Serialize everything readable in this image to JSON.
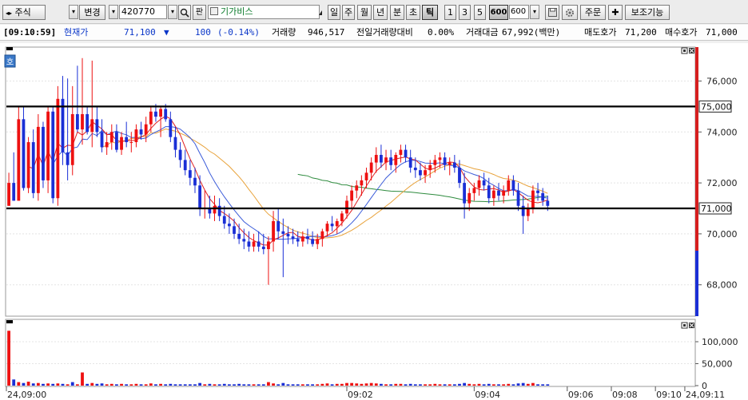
{
  "toolbar": {
    "market_select": "주식",
    "change_label": "변경",
    "code": "420770",
    "search_icon": "search-icon",
    "pan_label": "판",
    "stock_name": "기가비스",
    "period_day": "일",
    "period_week": "주",
    "period_month": "월",
    "period_year": "년",
    "period_min": "분",
    "period_sec": "초",
    "period_tick": "틱",
    "tick_1": "1",
    "tick_3": "3",
    "tick_5": "5",
    "tick_600": "600",
    "tick_input": "600",
    "order_label": "주문",
    "aux_label": "보조기능"
  },
  "infobar": {
    "time": "[09:10:59]",
    "price_label": "현재가",
    "price": "71,100",
    "change_arrow": "▼",
    "change": "100",
    "change_pct": "(-0.14%)",
    "volume_label": "거래량",
    "volume": "946,517",
    "prev_ratio_label": "전일거래량대비",
    "prev_ratio": "0.00%",
    "amount_label": "거래대금",
    "amount": "67,992(백만)",
    "ask_label": "매도호가",
    "ask": "71,200",
    "bid_label": "매수호가",
    "bid": "71,000"
  },
  "chart_badge": "호",
  "colors": {
    "up": "#ee1111",
    "down": "#1a2fd6",
    "ma5": "#e02020",
    "ma10": "#3a5bd9",
    "ma20": "#e8a23a",
    "ma60": "#2e8b3e",
    "hline": "#000000",
    "scale_up": "#d61f1f",
    "scale_down": "#1a2fd6"
  },
  "chart_data": {
    "type": "candlestick",
    "instrument": "420770 기가비스",
    "interval": "600틱",
    "y_range": [
      66800,
      77300
    ],
    "y_ticks": [
      {
        "value": 76000,
        "label": "76,000"
      },
      {
        "value": 74000,
        "label": "74,000"
      },
      {
        "value": 72000,
        "label": "72,000"
      },
      {
        "value": 70000,
        "label": "70,000"
      },
      {
        "value": 68000,
        "label": "68,000"
      }
    ],
    "horizontal_lines": [
      {
        "value": 75000,
        "label": "75,000"
      },
      {
        "value": 71000,
        "label": "71,000"
      }
    ],
    "x_ticks": [
      {
        "index": 0,
        "label": "24,09:00"
      },
      {
        "index": 69,
        "label": "09:02"
      },
      {
        "index": 95,
        "label": "09:04"
      },
      {
        "index": 114,
        "label": "09:06"
      },
      {
        "index": 123,
        "label": "09:08"
      },
      {
        "index": 132,
        "label": "09:10"
      },
      {
        "index": 138,
        "label": "24,09:11"
      }
    ],
    "volume_ticks": [
      {
        "value": 100000,
        "label": "100,000"
      },
      {
        "value": 50000,
        "label": "50,000"
      },
      {
        "value": 0,
        "label": "0"
      }
    ],
    "volume_range": [
      0,
      140000
    ],
    "candles": [
      [
        0,
        71100,
        72400,
        71100,
        72000
      ],
      [
        1,
        72000,
        73200,
        71300,
        71300
      ],
      [
        2,
        71300,
        75000,
        71300,
        74500
      ],
      [
        3,
        74500,
        75000,
        71700,
        71800
      ],
      [
        4,
        71800,
        73800,
        71600,
        73600
      ],
      [
        5,
        73600,
        74100,
        71400,
        71600
      ],
      [
        6,
        71600,
        74700,
        71300,
        74200
      ],
      [
        7,
        74200,
        74400,
        71800,
        72100
      ],
      [
        8,
        72100,
        75000,
        71600,
        74800
      ],
      [
        9,
        74800,
        75000,
        71200,
        71400
      ],
      [
        10,
        71400,
        75800,
        71100,
        75300
      ],
      [
        11,
        75300,
        76200,
        72700,
        73200
      ],
      [
        12,
        73200,
        76100,
        72100,
        72700
      ],
      [
        13,
        72700,
        75800,
        72300,
        74700
      ],
      [
        14,
        74700,
        76600,
        74000,
        74100
      ],
      [
        15,
        74100,
        76900,
        73500,
        74700
      ],
      [
        16,
        74700,
        75000,
        73900,
        74000
      ],
      [
        17,
        74000,
        76800,
        73400,
        74500
      ],
      [
        18,
        74500,
        75000,
        73800,
        74000
      ],
      [
        19,
        74000,
        74500,
        73200,
        73400
      ],
      [
        20,
        73400,
        74000,
        73100,
        73600
      ],
      [
        21,
        73600,
        74300,
        73300,
        74000
      ],
      [
        22,
        74000,
        74300,
        73200,
        73300
      ],
      [
        23,
        73300,
        74000,
        73100,
        73800
      ],
      [
        24,
        73800,
        74400,
        73400,
        73600
      ],
      [
        25,
        73600,
        74000,
        73200,
        73600
      ],
      [
        26,
        73600,
        74300,
        73400,
        74100
      ],
      [
        27,
        74100,
        74400,
        73700,
        73900
      ],
      [
        28,
        73900,
        74600,
        73600,
        74300
      ],
      [
        29,
        74300,
        75000,
        74000,
        74800
      ],
      [
        30,
        74800,
        75100,
        74400,
        74600
      ],
      [
        31,
        74600,
        75000,
        73800,
        74900
      ],
      [
        32,
        74900,
        75100,
        74400,
        74500
      ],
      [
        33,
        74500,
        74800,
        73600,
        73800
      ],
      [
        34,
        73800,
        74200,
        73000,
        73300
      ],
      [
        35,
        73300,
        73600,
        72600,
        72900
      ],
      [
        36,
        72900,
        73300,
        72300,
        72500
      ],
      [
        37,
        72500,
        72900,
        71900,
        72200
      ],
      [
        38,
        72200,
        72600,
        71600,
        71900
      ],
      [
        39,
        71900,
        72300,
        70700,
        71000
      ],
      [
        40,
        71000,
        71700,
        70600,
        71000
      ],
      [
        41,
        71000,
        71500,
        70600,
        70800
      ],
      [
        42,
        70800,
        71500,
        70500,
        71100
      ],
      [
        43,
        71100,
        71400,
        70500,
        70700
      ],
      [
        44,
        70700,
        71100,
        70200,
        70400
      ],
      [
        45,
        70400,
        70800,
        70000,
        70300
      ],
      [
        46,
        70300,
        70600,
        69800,
        70000
      ],
      [
        47,
        70000,
        70400,
        69600,
        69800
      ],
      [
        48,
        69800,
        70200,
        69400,
        69700
      ],
      [
        49,
        69700,
        70100,
        69300,
        69500
      ],
      [
        50,
        69500,
        70000,
        69300,
        69700
      ],
      [
        51,
        69700,
        70100,
        69300,
        69500
      ],
      [
        52,
        69500,
        70000,
        69200,
        69400
      ],
      [
        53,
        69400,
        69900,
        68000,
        69700
      ],
      [
        54,
        69700,
        70900,
        69300,
        70500
      ],
      [
        55,
        70500,
        71000,
        69800,
        70100
      ],
      [
        56,
        70100,
        70600,
        68300,
        70000
      ],
      [
        57,
        70000,
        70300,
        69600,
        69900
      ],
      [
        58,
        69900,
        70200,
        69600,
        69800
      ],
      [
        59,
        69800,
        70100,
        69500,
        69700
      ],
      [
        60,
        69700,
        70100,
        69500,
        69900
      ],
      [
        61,
        69900,
        70200,
        69600,
        69800
      ],
      [
        62,
        69800,
        70100,
        69500,
        69600
      ],
      [
        63,
        69600,
        70000,
        69400,
        69800
      ],
      [
        64,
        69800,
        70200,
        69500,
        70100
      ],
      [
        65,
        70100,
        70500,
        69900,
        70400
      ],
      [
        66,
        70400,
        70700,
        70100,
        70300
      ],
      [
        67,
        70300,
        70600,
        70000,
        70500
      ],
      [
        68,
        70500,
        70900,
        70300,
        70800
      ],
      [
        69,
        70800,
        71500,
        70600,
        71300
      ],
      [
        70,
        71300,
        71900,
        71000,
        71700
      ],
      [
        71,
        71700,
        72100,
        71400,
        71900
      ],
      [
        72,
        71900,
        72300,
        71500,
        72100
      ],
      [
        73,
        72100,
        72600,
        71800,
        72400
      ],
      [
        74,
        72400,
        73000,
        72100,
        72800
      ],
      [
        75,
        72800,
        73400,
        72400,
        73100
      ],
      [
        76,
        73100,
        73500,
        72600,
        72800
      ],
      [
        77,
        72800,
        73300,
        72500,
        73000
      ],
      [
        78,
        73000,
        73300,
        72500,
        72700
      ],
      [
        79,
        72700,
        73200,
        72400,
        73100
      ],
      [
        80,
        73100,
        73500,
        72800,
        73300
      ],
      [
        81,
        73300,
        73500,
        72800,
        73000
      ],
      [
        82,
        73000,
        73300,
        72400,
        72600
      ],
      [
        83,
        72600,
        73000,
        72200,
        72500
      ],
      [
        84,
        72500,
        72800,
        72100,
        72300
      ],
      [
        85,
        72300,
        72700,
        72000,
        72500
      ],
      [
        86,
        72500,
        72900,
        72200,
        72700
      ],
      [
        87,
        72700,
        73100,
        72400,
        72900
      ],
      [
        88,
        72900,
        73200,
        72600,
        73000
      ],
      [
        89,
        73000,
        73200,
        72500,
        72700
      ],
      [
        90,
        72700,
        73000,
        72300,
        72800
      ],
      [
        91,
        72800,
        73100,
        72400,
        72600
      ],
      [
        92,
        72600,
        72900,
        71800,
        72000
      ],
      [
        93,
        72000,
        72400,
        70600,
        71200
      ],
      [
        94,
        71200,
        71800,
        70900,
        71600
      ],
      [
        95,
        71600,
        72000,
        71300,
        71800
      ],
      [
        96,
        71800,
        72300,
        71500,
        72100
      ],
      [
        97,
        72100,
        72400,
        71700,
        71900
      ],
      [
        98,
        71900,
        72200,
        71200,
        71400
      ],
      [
        99,
        71400,
        71900,
        71100,
        71700
      ],
      [
        100,
        71700,
        72000,
        71300,
        71500
      ],
      [
        101,
        71500,
        71900,
        71200,
        71700
      ],
      [
        102,
        71700,
        72300,
        71500,
        72100
      ],
      [
        103,
        72100,
        72300,
        71500,
        71700
      ],
      [
        104,
        71700,
        72000,
        70900,
        71100
      ],
      [
        105,
        71100,
        71500,
        70000,
        70700
      ],
      [
        106,
        70700,
        71200,
        70500,
        71000
      ],
      [
        107,
        71000,
        71900,
        70800,
        71700
      ],
      [
        108,
        71700,
        72000,
        71300,
        71600
      ],
      [
        109,
        71600,
        71800,
        71100,
        71300
      ],
      [
        110,
        71300,
        71500,
        70900,
        71100
      ]
    ],
    "volume_bars": [
      [
        0,
        125000,
        "up"
      ],
      [
        1,
        14000,
        "down"
      ],
      [
        2,
        8000,
        "up"
      ],
      [
        3,
        6000,
        "down"
      ],
      [
        4,
        9000,
        "up"
      ],
      [
        5,
        5000,
        "down"
      ],
      [
        6,
        6000,
        "up"
      ],
      [
        7,
        4000,
        "down"
      ],
      [
        8,
        5000,
        "up"
      ],
      [
        9,
        4000,
        "down"
      ],
      [
        10,
        5000,
        "up"
      ],
      [
        11,
        4000,
        "down"
      ],
      [
        12,
        3000,
        "up"
      ],
      [
        13,
        8000,
        "down"
      ],
      [
        14,
        3000,
        "up"
      ],
      [
        15,
        30000,
        "up"
      ],
      [
        16,
        4000,
        "down"
      ],
      [
        17,
        6000,
        "up"
      ],
      [
        18,
        4000,
        "down"
      ],
      [
        19,
        5000,
        "down"
      ],
      [
        20,
        3000,
        "up"
      ],
      [
        21,
        4000,
        "up"
      ],
      [
        22,
        3000,
        "down"
      ],
      [
        23,
        4000,
        "up"
      ],
      [
        24,
        3000,
        "down"
      ],
      [
        25,
        3000,
        "up"
      ],
      [
        26,
        4000,
        "up"
      ],
      [
        27,
        3000,
        "down"
      ],
      [
        28,
        3000,
        "up"
      ],
      [
        29,
        5000,
        "up"
      ],
      [
        30,
        3000,
        "down"
      ],
      [
        31,
        4000,
        "up"
      ],
      [
        32,
        3000,
        "down"
      ],
      [
        33,
        4000,
        "down"
      ],
      [
        34,
        3000,
        "down"
      ],
      [
        35,
        3000,
        "down"
      ],
      [
        36,
        3000,
        "down"
      ],
      [
        37,
        3000,
        "down"
      ],
      [
        38,
        3000,
        "down"
      ],
      [
        39,
        6000,
        "down"
      ],
      [
        40,
        3000,
        "up"
      ],
      [
        41,
        4000,
        "down"
      ],
      [
        42,
        3000,
        "up"
      ],
      [
        43,
        3000,
        "down"
      ],
      [
        44,
        4000,
        "down"
      ],
      [
        45,
        3000,
        "down"
      ],
      [
        46,
        3000,
        "down"
      ],
      [
        47,
        4000,
        "down"
      ],
      [
        48,
        3000,
        "down"
      ],
      [
        49,
        3000,
        "down"
      ],
      [
        50,
        3000,
        "up"
      ],
      [
        51,
        3000,
        "down"
      ],
      [
        52,
        3000,
        "down"
      ],
      [
        53,
        8000,
        "up"
      ],
      [
        54,
        5000,
        "up"
      ],
      [
        55,
        3000,
        "down"
      ],
      [
        56,
        6000,
        "down"
      ],
      [
        57,
        3000,
        "down"
      ],
      [
        58,
        3000,
        "down"
      ],
      [
        59,
        3000,
        "down"
      ],
      [
        60,
        3000,
        "up"
      ],
      [
        61,
        3000,
        "down"
      ],
      [
        62,
        3000,
        "down"
      ],
      [
        63,
        3000,
        "up"
      ],
      [
        64,
        4000,
        "up"
      ],
      [
        65,
        5000,
        "up"
      ],
      [
        66,
        3000,
        "down"
      ],
      [
        67,
        4000,
        "up"
      ],
      [
        68,
        4000,
        "up"
      ],
      [
        69,
        6000,
        "up"
      ],
      [
        70,
        6000,
        "up"
      ],
      [
        71,
        5000,
        "up"
      ],
      [
        72,
        4000,
        "up"
      ],
      [
        73,
        5000,
        "up"
      ],
      [
        74,
        6000,
        "up"
      ],
      [
        75,
        5000,
        "up"
      ],
      [
        76,
        4000,
        "down"
      ],
      [
        77,
        3000,
        "up"
      ],
      [
        78,
        3000,
        "down"
      ],
      [
        79,
        4000,
        "up"
      ],
      [
        80,
        4000,
        "up"
      ],
      [
        81,
        3000,
        "down"
      ],
      [
        82,
        4000,
        "down"
      ],
      [
        83,
        3000,
        "down"
      ],
      [
        84,
        3000,
        "down"
      ],
      [
        85,
        3000,
        "up"
      ],
      [
        86,
        3000,
        "up"
      ],
      [
        87,
        4000,
        "up"
      ],
      [
        88,
        3000,
        "up"
      ],
      [
        89,
        3000,
        "down"
      ],
      [
        90,
        3000,
        "up"
      ],
      [
        91,
        3000,
        "down"
      ],
      [
        92,
        4000,
        "down"
      ],
      [
        93,
        6000,
        "down"
      ],
      [
        94,
        4000,
        "up"
      ],
      [
        95,
        3000,
        "up"
      ],
      [
        96,
        4000,
        "up"
      ],
      [
        97,
        3000,
        "down"
      ],
      [
        98,
        4000,
        "down"
      ],
      [
        99,
        3000,
        "up"
      ],
      [
        100,
        3000,
        "down"
      ],
      [
        101,
        3000,
        "up"
      ],
      [
        102,
        4000,
        "up"
      ],
      [
        103,
        3000,
        "down"
      ],
      [
        104,
        5000,
        "down"
      ],
      [
        105,
        6000,
        "down"
      ],
      [
        106,
        4000,
        "up"
      ],
      [
        107,
        6000,
        "up"
      ],
      [
        108,
        3000,
        "down"
      ],
      [
        109,
        3000,
        "down"
      ],
      [
        110,
        3000,
        "down"
      ]
    ]
  }
}
